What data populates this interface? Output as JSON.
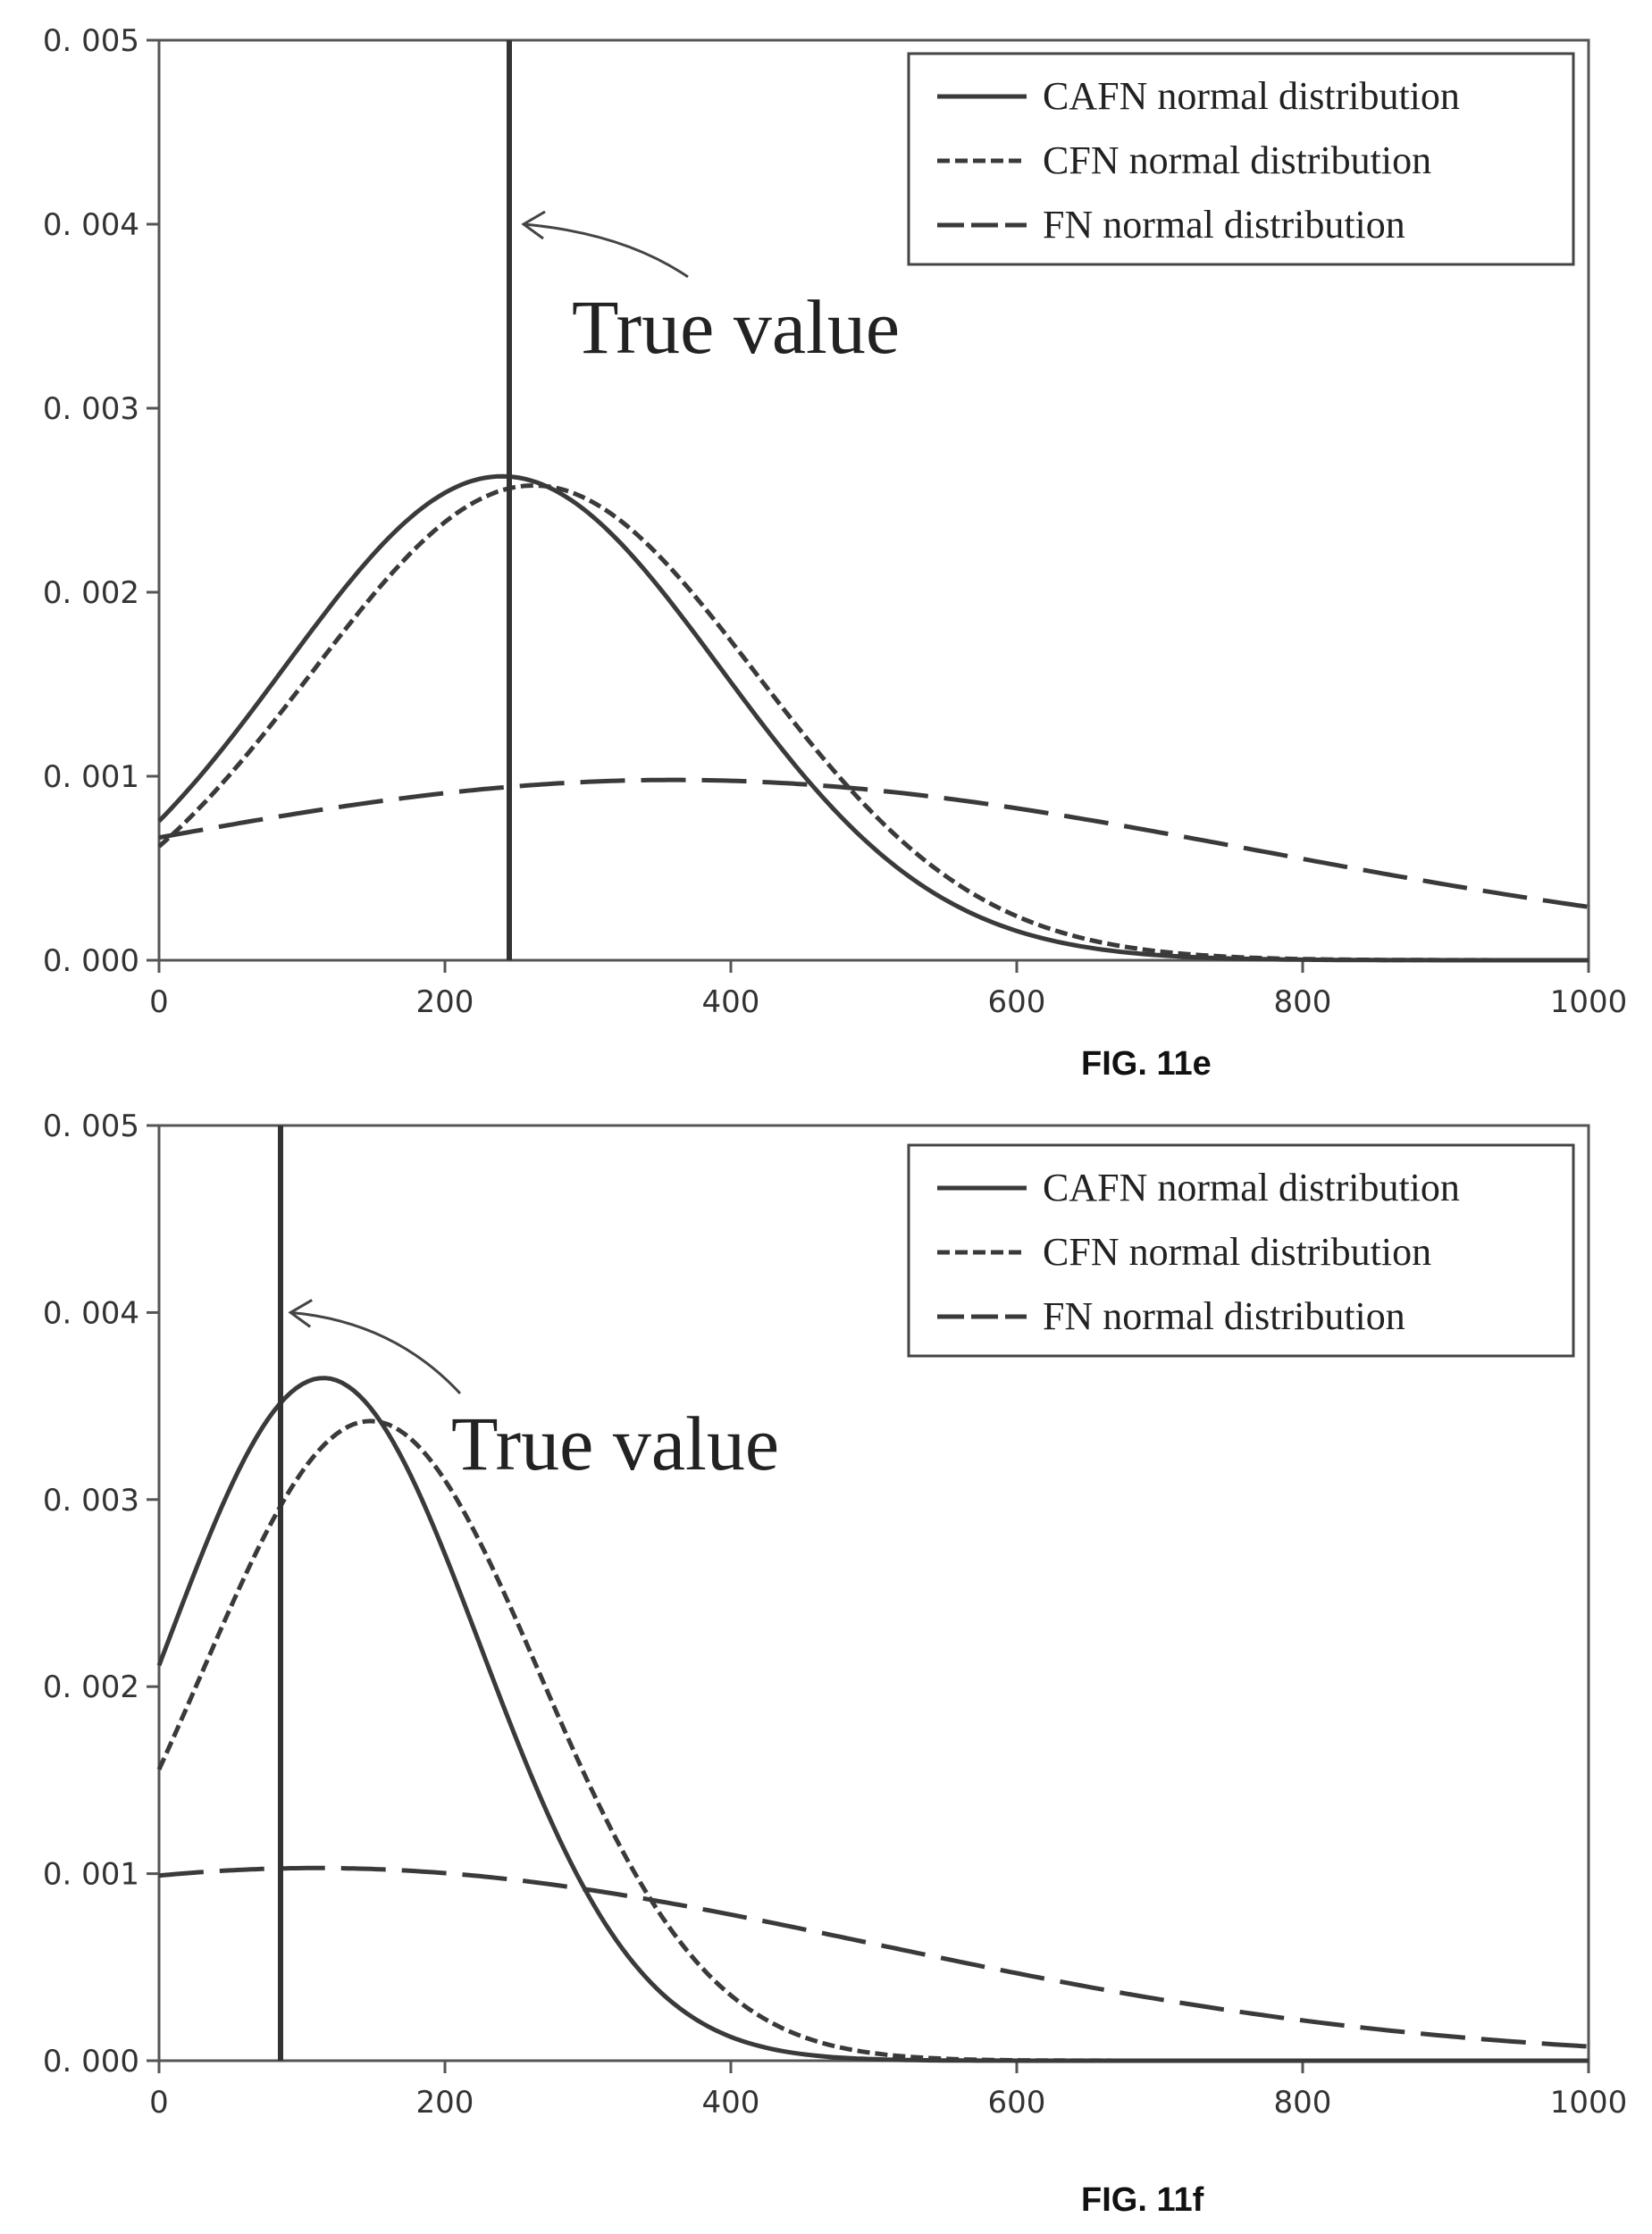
{
  "chart_data": [
    {
      "type": "line",
      "caption": "FIG. 11e",
      "xlim": [
        0,
        1000
      ],
      "ylim": [
        0,
        0.005
      ],
      "x_ticks": [
        0,
        200,
        400,
        600,
        800,
        1000
      ],
      "x_tick_labels": [
        "0",
        "200",
        "400",
        "600",
        "800",
        "1000"
      ],
      "y_ticks": [
        0,
        0.001,
        0.002,
        0.003,
        0.004,
        0.005
      ],
      "y_tick_labels": [
        "0. 000",
        "0. 001",
        "0. 002",
        "0. 003",
        "0. 004",
        "0. 005"
      ],
      "legend_position": "top-right",
      "grid": false,
      "true_value_x": 245,
      "annotation": {
        "text": "True value",
        "arrow_to": [
          255,
          0.004
        ]
      },
      "series": [
        {
          "name": "CAFN normal distribution",
          "style": "solid",
          "mean": 240,
          "sd": 152,
          "peak": 0.00263
        },
        {
          "name": "CFN normal distribution",
          "style": "short-dash",
          "mean": 262,
          "sd": 155,
          "peak": 0.00258
        },
        {
          "name": "FN normal distribution",
          "style": "long-dash",
          "mean": 360,
          "sd": 410,
          "peak": 0.00098
        }
      ]
    },
    {
      "type": "line",
      "caption": "FIG. 11f",
      "xlim": [
        0,
        1000
      ],
      "ylim": [
        0,
        0.005
      ],
      "x_ticks": [
        0,
        200,
        400,
        600,
        800,
        1000
      ],
      "x_tick_labels": [
        "0",
        "200",
        "400",
        "600",
        "800",
        "1000"
      ],
      "y_ticks": [
        0,
        0.001,
        0.002,
        0.003,
        0.004,
        0.005
      ],
      "y_tick_labels": [
        "0. 000",
        "0. 001",
        "0. 002",
        "0. 003",
        "0. 004",
        "0. 005"
      ],
      "legend_position": "top-right",
      "grid": false,
      "true_value_x": 85,
      "annotation": {
        "text": "True value",
        "arrow_to": [
          92,
          0.004
        ]
      },
      "series": [
        {
          "name": "CAFN normal distribution",
          "style": "solid",
          "mean": 115,
          "sd": 110,
          "peak": 0.00365
        },
        {
          "name": "CFN normal distribution",
          "style": "short-dash",
          "mean": 148,
          "sd": 118,
          "peak": 0.00342
        },
        {
          "name": "FN normal distribution",
          "style": "long-dash",
          "mean": 110,
          "sd": 390,
          "peak": 0.00103
        }
      ]
    }
  ]
}
